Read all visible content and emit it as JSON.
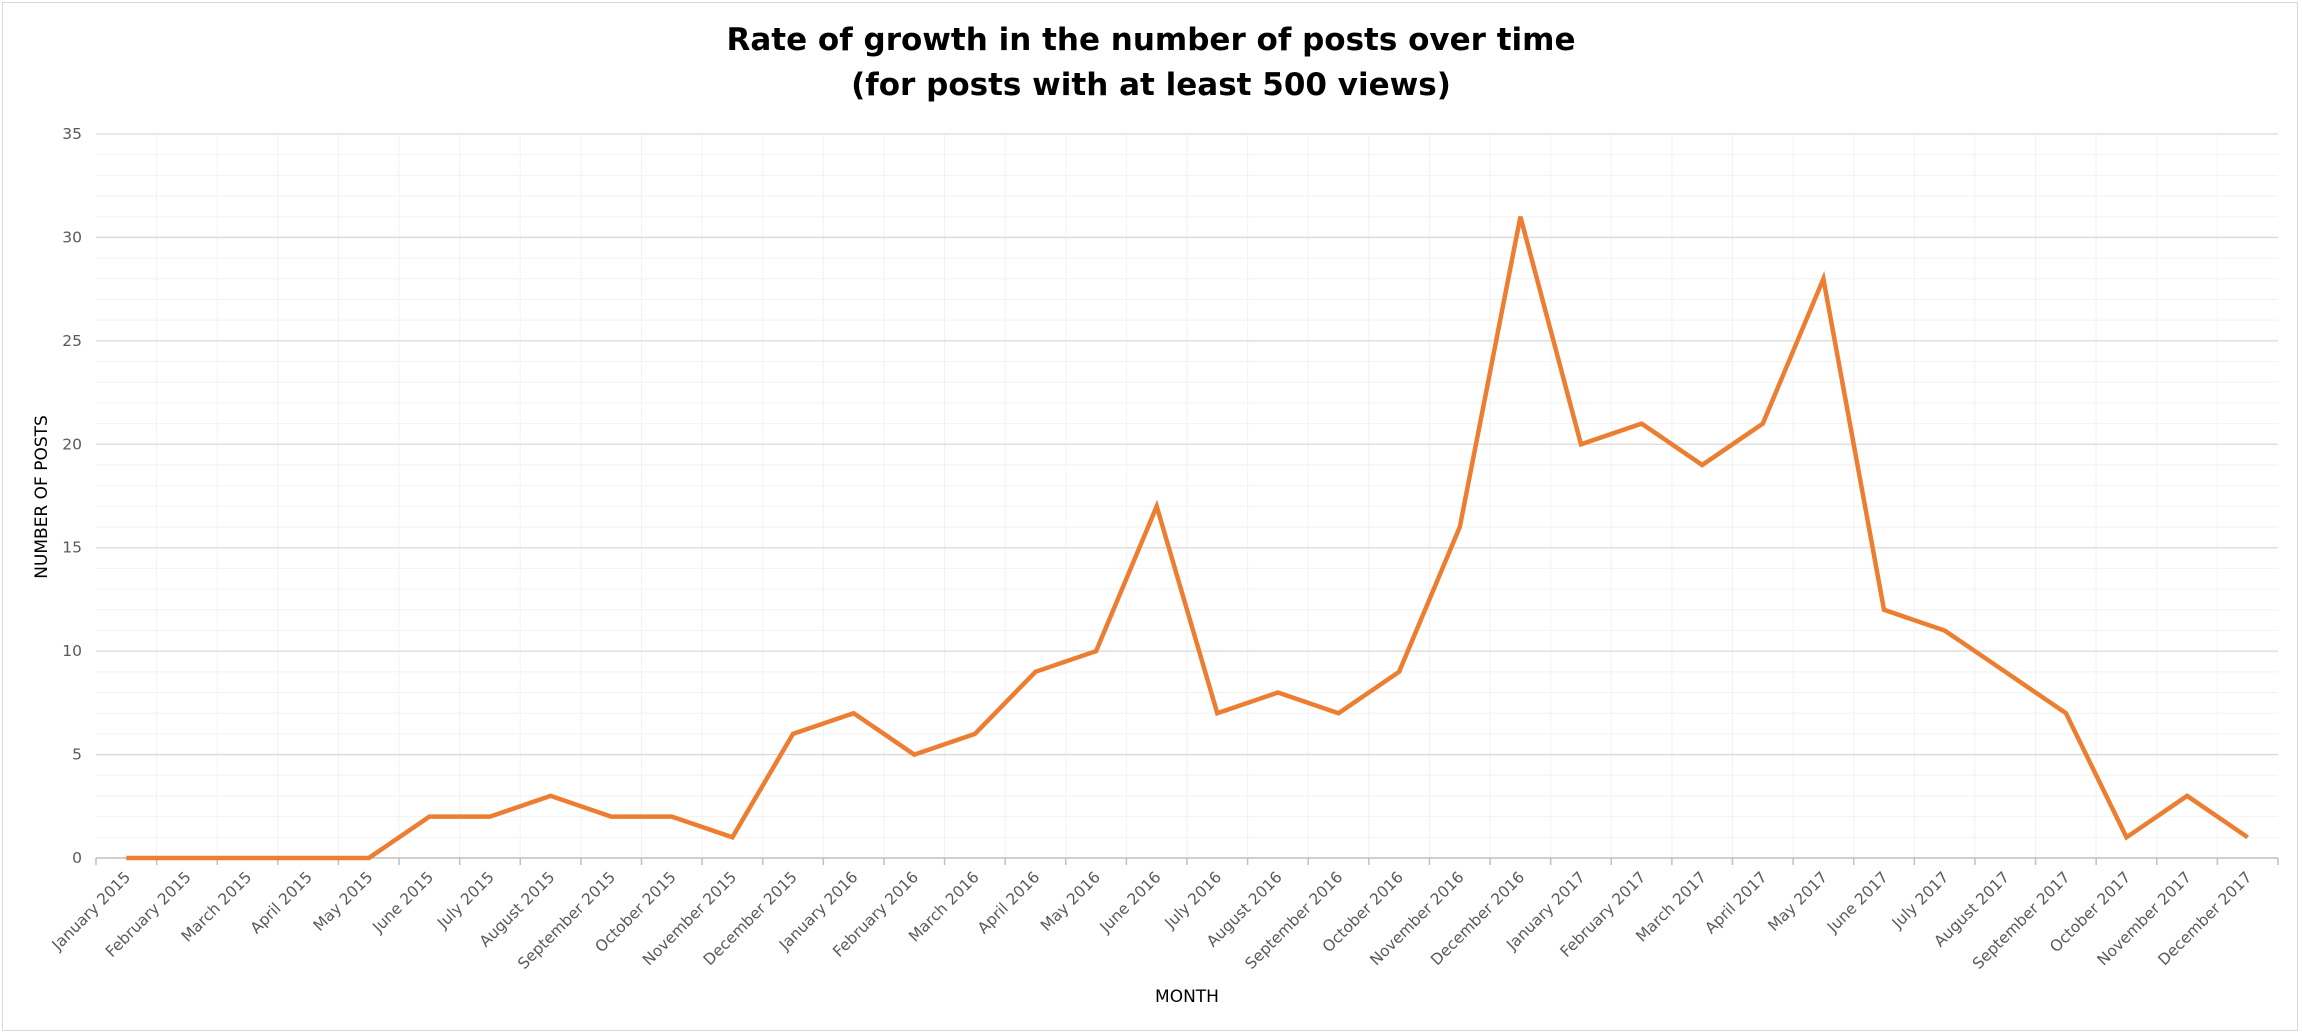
{
  "chart_data": {
    "type": "line",
    "title_lines": [
      "Rate of growth in the number of posts over time",
      "(for posts with at least 500 views)"
    ],
    "xlabel": "MONTH",
    "ylabel": "NUMBER OF POSTS",
    "ylim": [
      0,
      35
    ],
    "y_ticks": [
      0,
      5,
      10,
      15,
      20,
      25,
      30,
      35
    ],
    "grid": true,
    "legend": "none",
    "line_color": "#ED7D31",
    "categories": [
      "January 2015",
      "February 2015",
      "March 2015",
      "April 2015",
      "May 2015",
      "June 2015",
      "July 2015",
      "August 2015",
      "September 2015",
      "October 2015",
      "November 2015",
      "December 2015",
      "January 2016",
      "February 2016",
      "March 2016",
      "April 2016",
      "May 2016",
      "June 2016",
      "July 2016",
      "August 2016",
      "September 2016",
      "October 2016",
      "November 2016",
      "December 2016",
      "January 2017",
      "February 2017",
      "March 2017",
      "April 2017",
      "May 2017",
      "June 2017",
      "July 2017",
      "August 2017",
      "September 2017",
      "October 2017",
      "November 2017",
      "December 2017"
    ],
    "series": [
      {
        "values": [
          0,
          0,
          0,
          0,
          0,
          2,
          2,
          3,
          2,
          2,
          1,
          6,
          7,
          5,
          6,
          9,
          10,
          17,
          7,
          8,
          7,
          9,
          16,
          31,
          20,
          21,
          19,
          21,
          28,
          12,
          11,
          9,
          7,
          1,
          3,
          1
        ]
      }
    ]
  }
}
